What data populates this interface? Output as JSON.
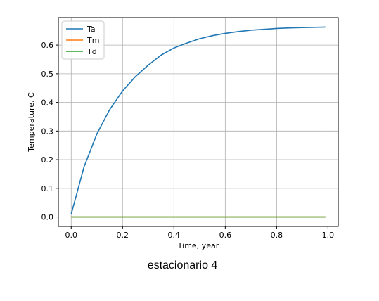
{
  "chart_data": {
    "type": "line",
    "title": "",
    "xlabel": "Time, year",
    "ylabel": "Temperature, C",
    "xlim": [
      -0.05,
      1.04
    ],
    "ylim": [
      -0.033,
      0.696
    ],
    "xticks": [
      0.0,
      0.2,
      0.4,
      0.6,
      0.8,
      1.0
    ],
    "xtick_labels": [
      "0.0",
      "0.2",
      "0.4",
      "0.6",
      "0.8",
      "1.0"
    ],
    "yticks": [
      0.0,
      0.1,
      0.2,
      0.3,
      0.4,
      0.5,
      0.6
    ],
    "ytick_labels": [
      "0.0",
      "0.1",
      "0.2",
      "0.3",
      "0.4",
      "0.5",
      "0.6"
    ],
    "grid": true,
    "legend_position": "top-left",
    "x": [
      0.0,
      0.05,
      0.1,
      0.15,
      0.2,
      0.25,
      0.3,
      0.35,
      0.4,
      0.45,
      0.5,
      0.55,
      0.6,
      0.65,
      0.7,
      0.75,
      0.8,
      0.85,
      0.9,
      0.95,
      0.99
    ],
    "series": [
      {
        "name": "Ta",
        "color": "#1f77b4",
        "values": [
          0.01,
          0.175,
          0.29,
          0.375,
          0.44,
          0.49,
          0.53,
          0.565,
          0.59,
          0.607,
          0.622,
          0.633,
          0.641,
          0.647,
          0.652,
          0.655,
          0.658,
          0.66,
          0.661,
          0.662,
          0.663
        ]
      },
      {
        "name": "Tm",
        "color": "#ff7f0e",
        "values": [
          0.0,
          0.0,
          0.0,
          0.0,
          0.0,
          0.0,
          0.0,
          0.0,
          0.0,
          0.0,
          0.0,
          0.0,
          0.0,
          0.0,
          0.0,
          0.0,
          0.0,
          0.0,
          0.0,
          0.0,
          0.0
        ]
      },
      {
        "name": "Td",
        "color": "#2ca02c",
        "values": [
          0.0,
          0.0,
          0.0,
          0.0,
          0.0,
          0.0,
          0.0,
          0.0,
          0.0,
          0.0,
          0.0,
          0.0,
          0.0,
          0.0,
          0.0,
          0.0,
          0.0,
          0.0,
          0.0,
          0.0,
          0.0
        ]
      }
    ]
  },
  "caption": "estacionario 4"
}
